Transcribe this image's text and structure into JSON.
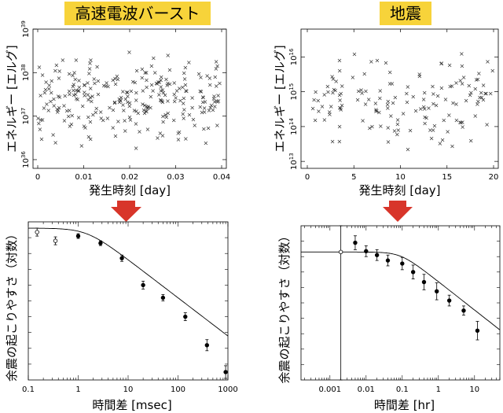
{
  "titles": {
    "left": "高速電波バースト",
    "right": "地震"
  },
  "colors": {
    "title_bg": "#f7d33a",
    "arrow": "#d8352a"
  },
  "chart_data": [
    {
      "id": "frb-scatter",
      "type": "scatter",
      "xlabel": "発生時刻 [day]",
      "ylabel": "エネルギー [エルグ]",
      "xlim": [
        0,
        0.04
      ],
      "xticks": [
        {
          "v": 0,
          "label": "0"
        },
        {
          "v": 0.01,
          "label": "0.01"
        },
        {
          "v": 0.02,
          "label": "0.02"
        },
        {
          "v": 0.03,
          "label": "0.03"
        },
        {
          "v": 0.04,
          "label": "0.04"
        }
      ],
      "ylim_log10": [
        35.8,
        39.0
      ],
      "yticks": [
        {
          "exp": 36,
          "label": "10",
          "sup": "36"
        },
        {
          "exp": 37,
          "label": "10",
          "sup": "37"
        },
        {
          "exp": 38,
          "label": "10",
          "sup": "38"
        },
        {
          "exp": 39,
          "label": "10",
          "sup": "39"
        }
      ],
      "marker": "×",
      "n_points": 270
    },
    {
      "id": "quake-scatter",
      "type": "scatter",
      "xlabel": "発生時刻 [day]",
      "ylabel": "エネルギー [エルグ]",
      "xlim": [
        0,
        20
      ],
      "xticks": [
        {
          "v": 0,
          "label": "0"
        },
        {
          "v": 5,
          "label": "5"
        },
        {
          "v": 10,
          "label": "10"
        },
        {
          "v": 15,
          "label": "15"
        },
        {
          "v": 20,
          "label": "20"
        }
      ],
      "ylim_log10": [
        12.8,
        16.8
      ],
      "yticks": [
        {
          "exp": 13,
          "label": "10",
          "sup": "13"
        },
        {
          "exp": 14,
          "label": "10",
          "sup": "14"
        },
        {
          "exp": 15,
          "label": "10",
          "sup": "15"
        },
        {
          "exp": 16,
          "label": "10",
          "sup": "16"
        }
      ],
      "marker": "×",
      "n_points": 150
    },
    {
      "id": "frb-aftershock",
      "type": "scatter",
      "xscale": "log",
      "xlabel": "時間差 [msec]",
      "ylabel": "余震の起こりやすさ（対数）",
      "xlim_log10": [
        -1,
        3
      ],
      "xticks": [
        {
          "v": 0.1,
          "label": "0.1"
        },
        {
          "v": 1,
          "label": "1"
        },
        {
          "v": 10,
          "label": "10"
        },
        {
          "v": 100,
          "label": "100"
        },
        {
          "v": 1000,
          "label": "1000"
        }
      ],
      "ylim": [
        0,
        10
      ],
      "points": [
        {
          "x": 0.15,
          "y": 9.35,
          "err": 0.25,
          "open": true
        },
        {
          "x": 0.35,
          "y": 8.8,
          "err": 0.25,
          "open": true
        },
        {
          "x": 1.0,
          "y": 9.1,
          "err": 0.15,
          "open": false
        },
        {
          "x": 2.8,
          "y": 8.65,
          "err": 0.15,
          "open": false
        },
        {
          "x": 7.5,
          "y": 7.7,
          "err": 0.2,
          "open": false
        },
        {
          "x": 20,
          "y": 6.0,
          "err": 0.25,
          "open": false
        },
        {
          "x": 50,
          "y": 5.2,
          "err": 0.2,
          "open": false
        },
        {
          "x": 140,
          "y": 4.0,
          "err": 0.25,
          "open": false
        },
        {
          "x": 380,
          "y": 2.2,
          "err": 0.35,
          "open": false
        },
        {
          "x": 900,
          "y": 0.5,
          "err": 0.4,
          "open": false
        }
      ],
      "fit": {
        "form": "plateau-powerlaw",
        "A": 9.6,
        "x0": 1.5,
        "k": 1.05
      }
    },
    {
      "id": "quake-aftershock",
      "type": "scatter",
      "xscale": "log",
      "xlabel": "時間差 [hr]",
      "ylabel": "余震の起こりやすさ（対数）",
      "xlim_log10": [
        -3.8,
        1.7
      ],
      "xticks": [
        {
          "v": 0.001,
          "label": "0.001"
        },
        {
          "v": 0.01,
          "label": "0.01"
        },
        {
          "v": 0.1,
          "label": "0.1"
        },
        {
          "v": 1,
          "label": "1"
        },
        {
          "v": 10,
          "label": "10"
        }
      ],
      "ylim": [
        0,
        10
      ],
      "points": [
        {
          "x": 0.002,
          "y": 8.3,
          "err": 8.3,
          "open": true
        },
        {
          "x": 0.005,
          "y": 8.9,
          "err": 0.45,
          "open": false
        },
        {
          "x": 0.01,
          "y": 8.35,
          "err": 0.35,
          "open": false
        },
        {
          "x": 0.02,
          "y": 8.1,
          "err": 0.35,
          "open": false
        },
        {
          "x": 0.04,
          "y": 7.75,
          "err": 0.35,
          "open": false
        },
        {
          "x": 0.1,
          "y": 7.55,
          "err": 0.4,
          "open": false
        },
        {
          "x": 0.2,
          "y": 7.0,
          "err": 0.45,
          "open": false
        },
        {
          "x": 0.4,
          "y": 6.35,
          "err": 0.5,
          "open": false
        },
        {
          "x": 0.9,
          "y": 5.75,
          "err": 0.55,
          "open": false
        },
        {
          "x": 2.0,
          "y": 5.15,
          "err": 0.35,
          "open": false
        },
        {
          "x": 5.0,
          "y": 4.5,
          "err": 0.3,
          "open": false
        },
        {
          "x": 12,
          "y": 3.2,
          "err": 0.6,
          "open": false
        }
      ],
      "fit": {
        "form": "plateau-powerlaw",
        "A": 8.3,
        "x0": 0.09,
        "k": 0.8
      }
    }
  ]
}
